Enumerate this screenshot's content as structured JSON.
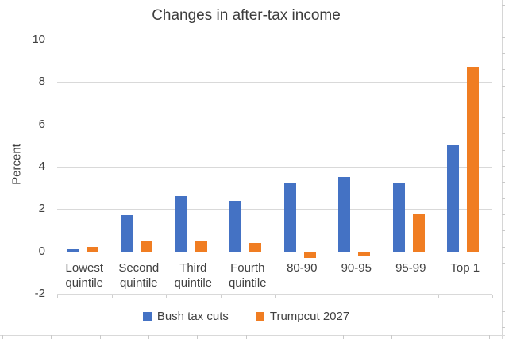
{
  "chart_data": {
    "type": "bar",
    "title": "Changes in after-tax income",
    "xlabel": "",
    "ylabel": "Percent",
    "categories": [
      "Lowest quintile",
      "Second quintile",
      "Third quintile",
      "Fourth quintile",
      "80-90",
      "90-95",
      "95-99",
      "Top 1"
    ],
    "series": [
      {
        "name": "Bush tax cuts",
        "color": "#4472c4",
        "values": [
          0.1,
          1.7,
          2.6,
          2.4,
          3.2,
          3.5,
          3.2,
          5.0
        ]
      },
      {
        "name": "Trumpcut 2027",
        "color": "#f07d22",
        "values": [
          0.2,
          0.5,
          0.5,
          0.4,
          -0.3,
          -0.2,
          1.8,
          8.7
        ]
      }
    ],
    "y_ticks": [
      10,
      8,
      6,
      4,
      2,
      0,
      -2
    ],
    "ylim": [
      -2,
      10
    ],
    "grid": true,
    "legend_position": "bottom",
    "gridline_color": "#d9d9d9",
    "text_color": "#404040",
    "background_color": "#ffffff"
  }
}
